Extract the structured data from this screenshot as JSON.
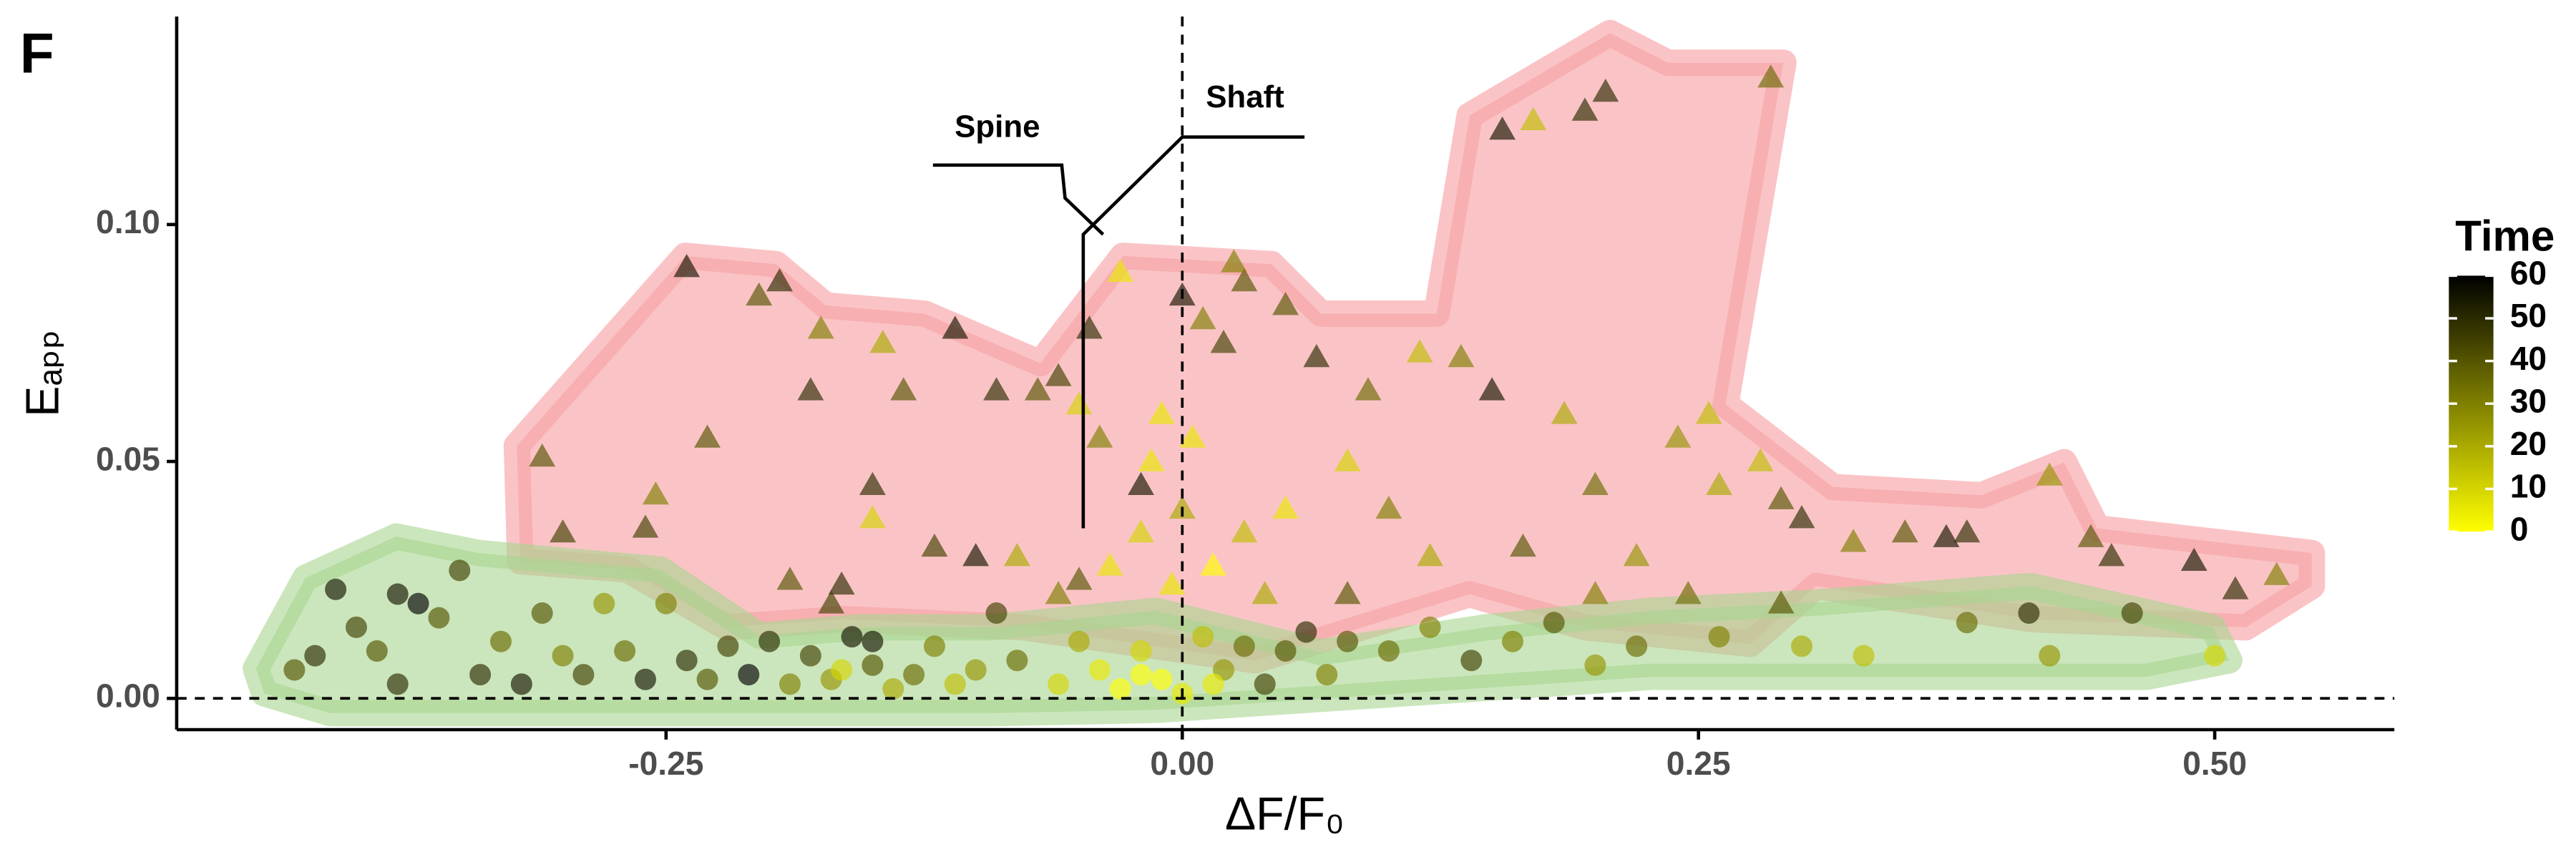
{
  "chart_data": {
    "type": "scatter",
    "panel_label": "F",
    "x_label": "ΔF/F₀",
    "y_label": "Eₐₚₚ",
    "annotations": [
      "Spine",
      "Shaft"
    ],
    "color_legend": {
      "title": "Time",
      "low_color": "#ffff00",
      "high_color": "#000000",
      "lim": [
        0,
        60
      ],
      "ticks": [
        0,
        10,
        20,
        30,
        40,
        50,
        60
      ]
    },
    "xlim": [
      -0.487,
      0.587
    ],
    "ylim": [
      -0.0066,
      0.1439
    ],
    "xticks": [
      {
        "value": -0.25,
        "label": "-0.25"
      },
      {
        "value": 0,
        "label": "0.00"
      },
      {
        "value": 0.25,
        "label": "0.25"
      },
      {
        "value": 0.5,
        "label": "0.50"
      }
    ],
    "yticks": [
      {
        "value": 0,
        "label": "0.00"
      },
      {
        "value": 0.05,
        "label": "0.05"
      },
      {
        "value": 0.1,
        "label": "0.10"
      }
    ],
    "hline": 0,
    "vline": 0,
    "series": [
      {
        "marker": "triangle",
        "x": [
          -0.24,
          -0.205,
          -0.195,
          -0.175,
          -0.31,
          -0.3,
          -0.255,
          -0.26,
          -0.23,
          -0.18,
          -0.15,
          -0.145,
          -0.11,
          -0.135,
          -0.09,
          -0.07,
          -0.06,
          -0.045,
          -0.05,
          -0.04,
          -0.03,
          -0.02,
          -0.01,
          0.0,
          0.01,
          0.02,
          0.03,
          0.025,
          0.05,
          0.065,
          0.09,
          0.115,
          0.135,
          0.15,
          0.155,
          0.17,
          0.195,
          0.205,
          0.285,
          0.185,
          0.24,
          0.255,
          0.2,
          0.26,
          0.28,
          0.29,
          0.3,
          0.325,
          0.35,
          0.37,
          0.38,
          0.42,
          0.44,
          0.45,
          0.49,
          0.51,
          0.53,
          0.29,
          0.2,
          0.12,
          0.1,
          0.08,
          0.05,
          0.03,
          0.0,
          -0.02,
          -0.035,
          -0.05,
          -0.08,
          -0.1,
          -0.12,
          -0.15,
          -0.165,
          -0.19,
          -0.17,
          -0.005,
          0.015,
          -0.015,
          0.005,
          0.04,
          0.08,
          -0.06,
          0.22,
          0.245,
          0.165
        ],
        "values": [
          0.091,
          0.085,
          0.088,
          0.078,
          0.051,
          0.035,
          0.043,
          0.036,
          0.055,
          0.065,
          0.045,
          0.075,
          0.078,
          0.065,
          0.065,
          0.065,
          0.068,
          0.078,
          0.062,
          0.055,
          0.09,
          0.045,
          0.06,
          0.085,
          0.08,
          0.075,
          0.088,
          0.092,
          0.083,
          0.072,
          0.065,
          0.073,
          0.072,
          0.065,
          0.12,
          0.122,
          0.124,
          0.128,
          0.131,
          0.06,
          0.055,
          0.06,
          0.045,
          0.045,
          0.05,
          0.042,
          0.038,
          0.033,
          0.035,
          0.034,
          0.035,
          0.047,
          0.034,
          0.03,
          0.029,
          0.023,
          0.026,
          0.02,
          0.022,
          0.03,
          0.04,
          0.05,
          0.04,
          0.035,
          0.04,
          0.035,
          0.028,
          0.025,
          0.03,
          0.03,
          0.032,
          0.038,
          0.024,
          0.025,
          0.02,
          0.024,
          0.028,
          0.05,
          0.055,
          0.022,
          0.022,
          0.022,
          0.03,
          0.022,
          0.032
        ],
        "time": [
          55,
          40,
          50,
          30,
          40,
          45,
          30,
          45,
          40,
          50,
          50,
          20,
          55,
          40,
          50,
          40,
          45,
          50,
          10,
          30,
          5,
          55,
          5,
          55,
          30,
          45,
          40,
          30,
          40,
          50,
          35,
          15,
          30,
          55,
          55,
          15,
          50,
          50,
          35,
          20,
          25,
          15,
          35,
          20,
          15,
          40,
          50,
          30,
          40,
          55,
          50,
          25,
          40,
          50,
          55,
          50,
          30,
          40,
          30,
          20,
          30,
          10,
          5,
          15,
          20,
          10,
          5,
          40,
          20,
          55,
          45,
          10,
          50,
          40,
          45,
          5,
          0,
          5,
          5,
          20,
          40,
          30,
          25,
          35,
          40
        ]
      },
      {
        "marker": "circle",
        "x": [
          -0.43,
          -0.42,
          -0.41,
          -0.4,
          -0.39,
          -0.38,
          -0.38,
          -0.37,
          -0.36,
          -0.35,
          -0.34,
          -0.33,
          -0.32,
          -0.31,
          -0.3,
          -0.29,
          -0.28,
          -0.27,
          -0.26,
          -0.25,
          -0.24,
          -0.23,
          -0.22,
          -0.21,
          -0.2,
          -0.19,
          -0.18,
          -0.17,
          -0.16,
          -0.15,
          -0.14,
          -0.13,
          -0.12,
          -0.11,
          -0.1,
          -0.09,
          -0.08,
          -0.06,
          -0.05,
          -0.04,
          -0.03,
          -0.02,
          -0.01,
          0.0,
          0.01,
          0.02,
          0.03,
          0.04,
          0.05,
          0.06,
          0.07,
          0.08,
          0.1,
          0.12,
          0.14,
          0.16,
          0.18,
          0.2,
          0.22,
          0.26,
          0.3,
          0.33,
          0.38,
          0.41,
          0.42,
          0.46,
          0.5,
          -0.15,
          -0.165,
          -0.02,
          0.015
        ],
        "values": [
          0.006,
          0.009,
          0.023,
          0.015,
          0.01,
          0.003,
          0.022,
          0.02,
          0.017,
          0.027,
          0.005,
          0.012,
          0.003,
          0.018,
          0.009,
          0.005,
          0.02,
          0.01,
          0.004,
          0.02,
          0.008,
          0.004,
          0.011,
          0.005,
          0.012,
          0.003,
          0.009,
          0.004,
          0.013,
          0.007,
          0.002,
          0.005,
          0.011,
          0.003,
          0.006,
          0.018,
          0.008,
          0.003,
          0.012,
          0.006,
          0.002,
          0.01,
          0.004,
          0.001,
          0.013,
          0.006,
          0.011,
          0.003,
          0.01,
          0.014,
          0.005,
          0.012,
          0.01,
          0.015,
          0.008,
          0.012,
          0.016,
          0.007,
          0.011,
          0.013,
          0.011,
          0.009,
          0.016,
          0.018,
          0.009,
          0.018,
          0.009,
          0.012,
          0.006,
          0.005,
          0.003
        ],
        "time": [
          40,
          50,
          55,
          45,
          40,
          50,
          55,
          60,
          40,
          45,
          50,
          35,
          55,
          40,
          30,
          45,
          25,
          35,
          55,
          30,
          50,
          40,
          45,
          60,
          50,
          30,
          45,
          25,
          55,
          40,
          20,
          35,
          30,
          15,
          25,
          45,
          35,
          10,
          20,
          5,
          0,
          10,
          0,
          5,
          15,
          25,
          35,
          45,
          40,
          50,
          30,
          40,
          35,
          30,
          45,
          30,
          40,
          25,
          35,
          30,
          20,
          15,
          35,
          50,
          25,
          45,
          10,
          55,
          10,
          0,
          5
        ]
      }
    ]
  }
}
